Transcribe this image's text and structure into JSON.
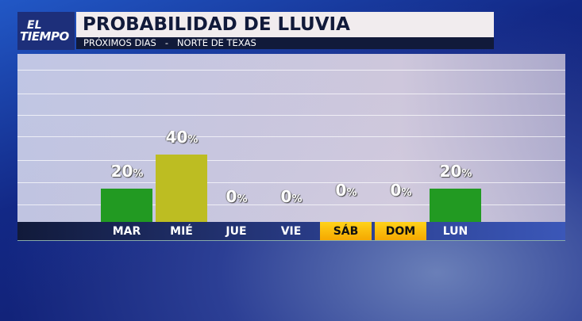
{
  "logo": {
    "line1": "EL",
    "line2": "TIEMPO"
  },
  "header": {
    "title": "PROBABILIDAD DE LLUVIA",
    "subtitle": "PRÓXIMOS DIAS   -   NORTE DE TEXAS"
  },
  "chart_data": {
    "type": "bar",
    "title": "PROBABILIDAD DE LLUVIA",
    "subtitle": "PRÓXIMOS DIAS - NORTE DE TEXAS",
    "categories": [
      "MAR",
      "MIÉ",
      "JUE",
      "VIE",
      "SÁB",
      "DOM",
      "LUN"
    ],
    "values": [
      20,
      40,
      0,
      0,
      0,
      0,
      20
    ],
    "labels": [
      "20",
      "40",
      "0",
      "0",
      "0",
      "0",
      "20"
    ],
    "unit": "%",
    "ylim": [
      0,
      100
    ],
    "grid": true,
    "bar_colors": [
      "#229a22",
      "#bdbd22",
      "#229a22",
      "#229a22",
      "#229a22",
      "#229a22",
      "#229a22"
    ],
    "highlighted_categories": [
      "SÁB",
      "DOM"
    ],
    "highlight_color": "#ffc20e"
  }
}
